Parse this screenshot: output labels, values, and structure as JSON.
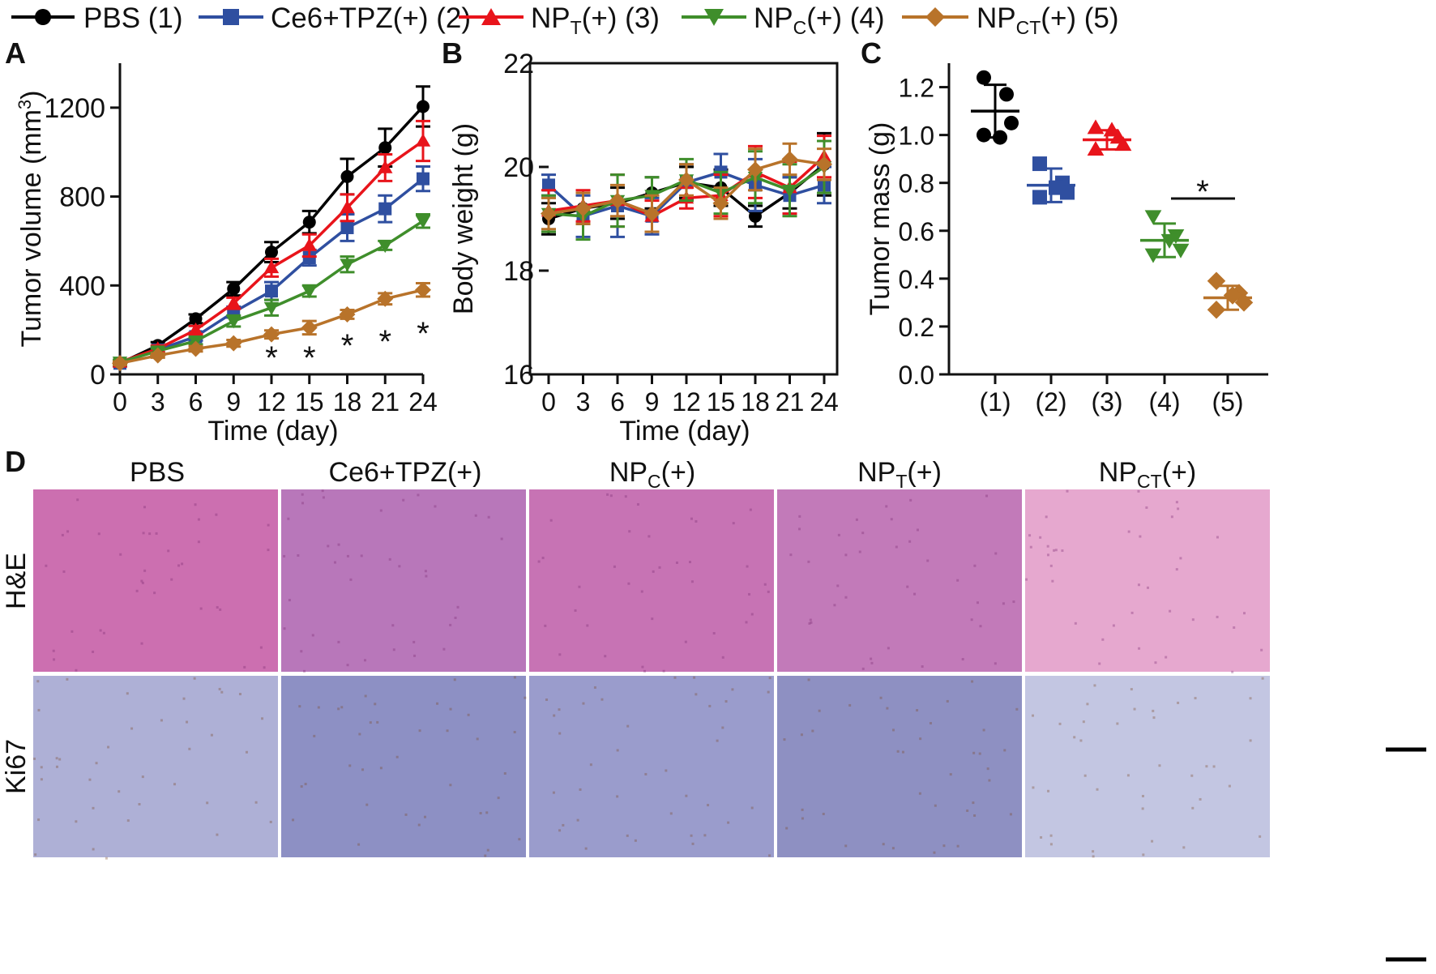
{
  "legend": [
    {
      "base": "PBS (1)",
      "sub": "",
      "tail": "",
      "color": "#000000",
      "marker": "circle"
    },
    {
      "base": "Ce6+TPZ(+) (2)",
      "sub": "",
      "tail": "",
      "color": "#2F4FA0",
      "marker": "square"
    },
    {
      "base": "NP",
      "sub": "T",
      "tail": "(+) (3)",
      "color": "#E8141B",
      "marker": "triangle-up"
    },
    {
      "base": "NP",
      "sub": "C",
      "tail": "(+) (4)",
      "color": "#3F8E2B",
      "marker": "triangle-down"
    },
    {
      "base": "NP",
      "sub": "CT",
      "tail": "(+) (5)",
      "color": "#B8732A",
      "marker": "diamond"
    }
  ],
  "panels": {
    "A": {
      "letter": "A"
    },
    "B": {
      "letter": "B"
    },
    "C": {
      "letter": "C"
    },
    "D": {
      "letter": "D",
      "columns": [
        {
          "base": "PBS",
          "sub": "",
          "tail": ""
        },
        {
          "base": "Ce6+TPZ(+)",
          "sub": "",
          "tail": ""
        },
        {
          "base": "NP",
          "sub": "C",
          "tail": "(+)"
        },
        {
          "base": "NP",
          "sub": "T",
          "tail": "(+)"
        },
        {
          "base": "NP",
          "sub": "CT",
          "tail": "(+)"
        }
      ],
      "rows": [
        "H&E",
        "Ki67"
      ],
      "he_textures": [
        "#CC6FB0",
        "#B877BA",
        "#C773B4",
        "#C27AB9",
        "#E6A8CF"
      ],
      "ki_textures": [
        "#AEB0D6",
        "#8D90C4",
        "#9A9CCC",
        "#8E90C2",
        "#C3C6E2"
      ]
    }
  },
  "chart_data": [
    {
      "panel": "A",
      "type": "line",
      "xlabel": "Time (day)",
      "ylabel": {
        "base": "Tumor volume (mm",
        "sup": "3",
        "tail": ")"
      },
      "x": [
        0,
        3,
        6,
        9,
        12,
        15,
        18,
        21,
        24
      ],
      "xlim": [
        0,
        24
      ],
      "ylim": [
        0,
        1400
      ],
      "xticks": [
        "0",
        "3",
        "6",
        "9",
        "12",
        "15",
        "18",
        "21",
        "24"
      ],
      "yticks": [
        0,
        400,
        800,
        1200
      ],
      "series": [
        {
          "color": "#000000",
          "marker": "circle",
          "values": [
            50,
            130,
            250,
            385,
            550,
            685,
            890,
            1020,
            1205
          ],
          "errors": [
            12,
            15,
            20,
            30,
            45,
            50,
            80,
            85,
            90
          ]
        },
        {
          "color": "#2F4FA0",
          "marker": "square",
          "values": [
            50,
            110,
            170,
            280,
            375,
            525,
            660,
            745,
            880
          ],
          "errors": [
            10,
            12,
            18,
            25,
            40,
            35,
            60,
            60,
            55
          ]
        },
        {
          "color": "#E8141B",
          "marker": "triangle-up",
          "values": [
            55,
            115,
            200,
            320,
            480,
            580,
            750,
            930,
            1050
          ],
          "errors": [
            10,
            15,
            18,
            25,
            40,
            50,
            60,
            60,
            90
          ]
        },
        {
          "color": "#3F8E2B",
          "marker": "triangle-down",
          "values": [
            55,
            105,
            150,
            240,
            300,
            375,
            495,
            580,
            690
          ],
          "errors": [
            10,
            12,
            15,
            25,
            35,
            25,
            35,
            20,
            30
          ]
        },
        {
          "color": "#B8732A",
          "marker": "diamond",
          "values": [
            50,
            85,
            115,
            140,
            180,
            210,
            270,
            340,
            380
          ],
          "errors": [
            8,
            10,
            12,
            15,
            18,
            30,
            20,
            25,
            30
          ]
        }
      ],
      "annotations": [
        {
          "x": 12,
          "text": "*"
        },
        {
          "x": 15,
          "text": "*"
        },
        {
          "x": 18,
          "text": "*"
        },
        {
          "x": 21,
          "text": "*"
        },
        {
          "x": 24,
          "text": "*"
        }
      ]
    },
    {
      "panel": "B",
      "type": "line",
      "xlabel": "Time (day)",
      "ylabel": "Body weight (g)",
      "x": [
        0,
        3,
        6,
        9,
        12,
        15,
        18,
        21,
        24
      ],
      "xlim": [
        0,
        24
      ],
      "ylim": [
        16,
        22
      ],
      "xticks": [
        "0",
        "3",
        "6",
        "9",
        "12",
        "15",
        "18",
        "21",
        "24"
      ],
      "yticks": [
        16,
        18,
        20,
        22
      ],
      "series": [
        {
          "color": "#000000",
          "marker": "circle",
          "values": [
            19.0,
            19.2,
            19.3,
            19.5,
            19.7,
            19.6,
            19.05,
            19.5,
            20.05
          ],
          "errors": [
            0.3,
            0.3,
            0.3,
            0.3,
            0.3,
            0.35,
            0.2,
            0.3,
            0.6
          ]
        },
        {
          "color": "#2F4FA0",
          "marker": "square",
          "values": [
            19.65,
            19.05,
            19.25,
            19.05,
            19.7,
            19.9,
            19.65,
            19.45,
            19.65
          ],
          "errors": [
            0.2,
            0.4,
            0.6,
            0.35,
            0.35,
            0.35,
            0.5,
            0.35,
            0.35
          ]
        },
        {
          "color": "#E8141B",
          "marker": "triangle-up",
          "values": [
            19.15,
            19.25,
            19.35,
            19.05,
            19.4,
            19.45,
            19.9,
            19.6,
            20.2
          ],
          "errors": [
            0.4,
            0.3,
            0.5,
            0.3,
            0.2,
            0.4,
            0.5,
            0.5,
            0.4
          ]
        },
        {
          "color": "#3F8E2B",
          "marker": "triangle-down",
          "values": [
            19.1,
            19.05,
            19.35,
            19.45,
            19.75,
            19.5,
            19.8,
            19.55,
            20.0
          ],
          "errors": [
            0.35,
            0.45,
            0.5,
            0.35,
            0.4,
            0.4,
            0.5,
            0.5,
            0.5
          ]
        },
        {
          "color": "#B8732A",
          "marker": "diamond",
          "values": [
            19.1,
            19.2,
            19.35,
            19.1,
            19.75,
            19.3,
            19.95,
            20.15,
            20.05
          ],
          "errors": [
            0.3,
            0.3,
            0.3,
            0.35,
            0.3,
            0.3,
            0.4,
            0.3,
            0.3
          ]
        }
      ]
    },
    {
      "panel": "C",
      "type": "scatter",
      "xlabel": "",
      "ylabel": "Tumor mass (g)",
      "categories": [
        "(1)",
        "(2)",
        "(3)",
        "(4)",
        "(5)"
      ],
      "ylim": [
        0,
        1.3
      ],
      "yticks": [
        "0.0",
        "0.2",
        "0.4",
        "0.6",
        "0.8",
        "1.0",
        "1.2"
      ],
      "groups": [
        {
          "color": "#000000",
          "marker": "circle",
          "points": [
            1.24,
            1.17,
            1.05,
            1.0,
            0.99
          ],
          "mean": 1.1,
          "sd": 0.11
        },
        {
          "color": "#2F4FA0",
          "marker": "square",
          "points": [
            0.88,
            0.8,
            0.76,
            0.74,
            0.78
          ],
          "mean": 0.79,
          "sd": 0.07
        },
        {
          "color": "#E8141B",
          "marker": "triangle-up",
          "points": [
            1.03,
            0.99,
            0.96,
            0.94,
            1.02
          ],
          "mean": 0.98,
          "sd": 0.04
        },
        {
          "color": "#3F8E2B",
          "marker": "triangle-down",
          "points": [
            0.66,
            0.58,
            0.52,
            0.5,
            0.56
          ],
          "mean": 0.56,
          "sd": 0.07
        },
        {
          "color": "#B8732A",
          "marker": "diamond",
          "points": [
            0.39,
            0.34,
            0.3,
            0.27,
            0.33
          ],
          "mean": 0.32,
          "sd": 0.05
        }
      ],
      "significance": {
        "from": 4,
        "to": 5,
        "text": "*"
      }
    }
  ]
}
